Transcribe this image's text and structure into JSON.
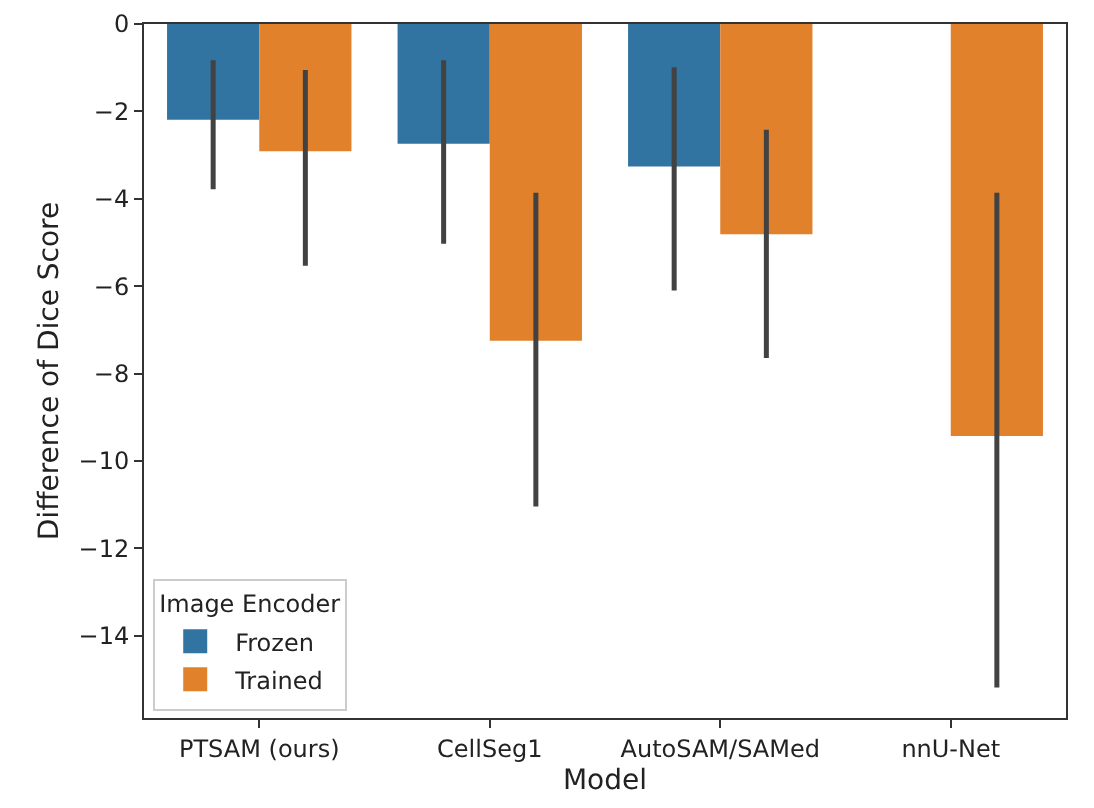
{
  "chart_data": {
    "type": "bar",
    "xlabel": "Model",
    "ylabel": "Difference of Dice Score",
    "legend_title": "Image Encoder",
    "categories": [
      "PTSAM (ours)",
      "CellSeg1",
      "AutoSAM/SAMed",
      "nnU-Net"
    ],
    "series": [
      {
        "name": "Frozen",
        "color": "#3274a1",
        "values": [
          -2.19,
          -2.74,
          -3.26,
          null
        ],
        "errors": [
          [
            -3.78,
            -0.83
          ],
          [
            -5.03,
            -0.83
          ],
          [
            -6.1,
            -0.99
          ],
          null
        ]
      },
      {
        "name": "Trained",
        "color": "#e1812c",
        "values": [
          -2.91,
          -7.25,
          -4.81,
          -9.43
        ],
        "errors": [
          [
            -5.53,
            -1.05
          ],
          [
            -11.04,
            -3.86
          ],
          [
            -7.64,
            -2.42
          ],
          [
            -15.18,
            -3.86
          ]
        ]
      }
    ],
    "ylim": [
      -15.88,
      0
    ],
    "yticks": [
      -14,
      -12,
      -10,
      -8,
      -6,
      -4,
      -2,
      0
    ],
    "grid": false,
    "legend": "bottom left"
  }
}
